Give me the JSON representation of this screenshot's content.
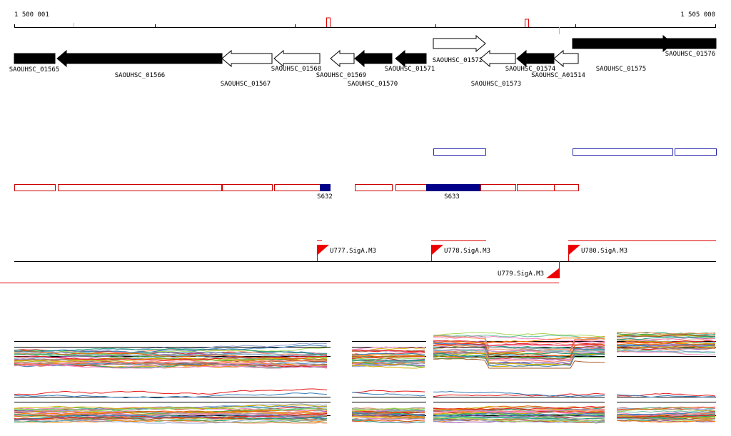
{
  "ruler": {
    "start_label": "1 500 001",
    "end_label": "1 505 000"
  },
  "genes": [
    "SAOUHSC_01565",
    "SAOUHSC_01566",
    "SAOUHSC_01567",
    "SAOUHSC_01568",
    "SAOUHSC_01569",
    "SAOUHSC_01570",
    "SAOUHSC_01571",
    "SAOUHSC_01572",
    "SAOUHSC_01573",
    "SAOUHSC_01574",
    "SAOUHSC_A01514",
    "SAOUHSC_01575",
    "SAOUHSC_01576"
  ],
  "segments": [
    "S632",
    "S633"
  ],
  "promoters": [
    "U777.SigA.M3",
    "U778.SigA.M3",
    "U779.SigA.M3",
    "U780.SigA.M3"
  ]
}
